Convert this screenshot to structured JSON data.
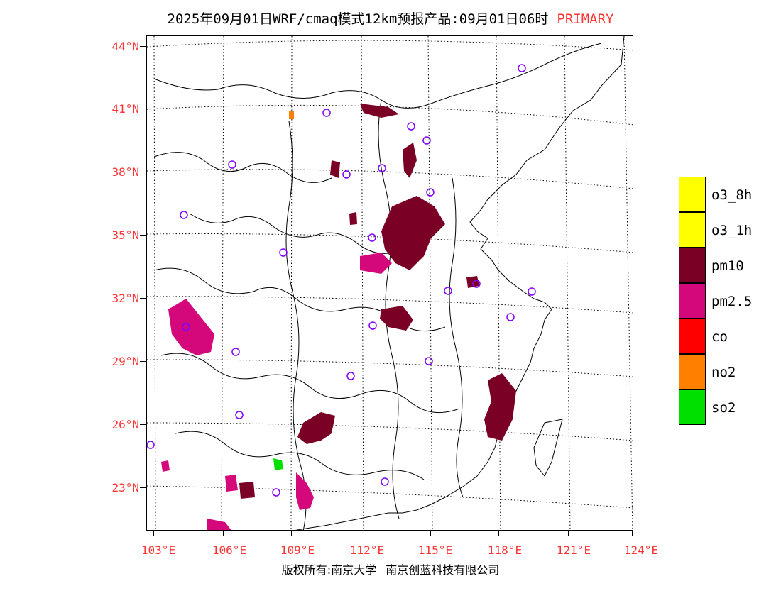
{
  "header": {
    "title": "2025年09月01日WRF/cmaq模式12km预报产品:09月01日06时",
    "tag": "PRIMARY"
  },
  "axes": {
    "lat_labels": [
      "44°N",
      "41°N",
      "38°N",
      "35°N",
      "32°N",
      "29°N",
      "26°N",
      "23°N"
    ],
    "lon_labels": [
      "103°E",
      "106°E",
      "109°E",
      "112°E",
      "115°E",
      "118°E",
      "121°E",
      "124°E"
    ]
  },
  "legend": {
    "items": [
      {
        "label": "o3_8h",
        "color": "#ffff00"
      },
      {
        "label": "o3_1h",
        "color": "#ffff00"
      },
      {
        "label": "pm10",
        "color": "#7a0026"
      },
      {
        "label": "pm2.5",
        "color": "#d4087a"
      },
      {
        "label": "co",
        "color": "#ff0000"
      },
      {
        "label": "no2",
        "color": "#ff8000"
      },
      {
        "label": "so2",
        "color": "#00e000"
      }
    ]
  },
  "footer": {
    "left": "版权所有:南京大学",
    "right": "南京创蓝科技有限公司"
  }
}
